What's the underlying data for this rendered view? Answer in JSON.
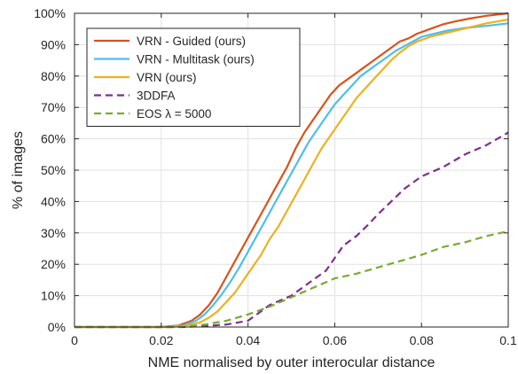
{
  "chart_data": {
    "type": "line",
    "title": "",
    "xlabel": "NME normalised by outer interocular distance",
    "ylabel": "% of images",
    "xlim": [
      0,
      0.1
    ],
    "ylim": [
      0,
      100
    ],
    "xticks": [
      0,
      0.02,
      0.04,
      0.06,
      0.08,
      0.1
    ],
    "xtick_labels": [
      "0",
      "0.02",
      "0.04",
      "0.06",
      "0.08",
      "0.1"
    ],
    "yticks": [
      0,
      10,
      20,
      30,
      40,
      50,
      60,
      70,
      80,
      90,
      100
    ],
    "ytick_labels": [
      "0%",
      "10%",
      "20%",
      "30%",
      "40%",
      "50%",
      "60%",
      "70%",
      "80%",
      "90%",
      "100%"
    ],
    "grid": true,
    "legend_position": "top-left",
    "series": [
      {
        "name": "VRN - Guided (ours)",
        "color": "#d95319",
        "style": "solid",
        "x": [
          0,
          0.02,
          0.024,
          0.027,
          0.029,
          0.031,
          0.033,
          0.035,
          0.037,
          0.039,
          0.041,
          0.043,
          0.045,
          0.047,
          0.049,
          0.051,
          0.053,
          0.055,
          0.057,
          0.059,
          0.061,
          0.063,
          0.065,
          0.067,
          0.069,
          0.071,
          0.073,
          0.075,
          0.077,
          0.079,
          0.082,
          0.085,
          0.088,
          0.091,
          0.095,
          0.1
        ],
        "y": [
          0,
          0,
          0.5,
          2,
          4,
          7,
          11,
          16,
          21,
          26,
          31,
          36,
          41,
          46,
          51,
          57,
          62,
          66,
          70,
          74,
          77,
          79,
          81,
          83,
          85,
          87,
          89,
          91,
          92,
          93.5,
          95,
          96.5,
          97.5,
          98.3,
          99.2,
          100
        ]
      },
      {
        "name": "VRN - Multitask (ours)",
        "color": "#4dbeee",
        "style": "solid",
        "x": [
          0,
          0.021,
          0.025,
          0.028,
          0.03,
          0.032,
          0.034,
          0.036,
          0.038,
          0.04,
          0.042,
          0.044,
          0.046,
          0.048,
          0.05,
          0.052,
          0.054,
          0.056,
          0.058,
          0.06,
          0.062,
          0.064,
          0.066,
          0.068,
          0.07,
          0.072,
          0.074,
          0.076,
          0.078,
          0.08,
          0.083,
          0.086,
          0.09,
          0.095,
          0.1
        ],
        "y": [
          0,
          0,
          0.5,
          2,
          4,
          7,
          10.5,
          14.5,
          19,
          24,
          29,
          34,
          39,
          44,
          49,
          54,
          59,
          63,
          67,
          71,
          74,
          77,
          80,
          82,
          84,
          86,
          88,
          89.5,
          91,
          92.5,
          93.5,
          94.5,
          95.3,
          96,
          96.8
        ]
      },
      {
        "name": "VRN (ours)",
        "color": "#edb120",
        "style": "solid",
        "x": [
          0,
          0.022,
          0.026,
          0.029,
          0.031,
          0.033,
          0.035,
          0.037,
          0.039,
          0.041,
          0.043,
          0.045,
          0.047,
          0.049,
          0.051,
          0.053,
          0.055,
          0.057,
          0.059,
          0.061,
          0.063,
          0.065,
          0.067,
          0.069,
          0.071,
          0.073,
          0.075,
          0.077,
          0.079,
          0.082,
          0.085,
          0.088,
          0.091,
          0.095,
          0.1
        ],
        "y": [
          0,
          0,
          0.5,
          1.5,
          3,
          5,
          8,
          11,
          15,
          19,
          23,
          28,
          32,
          37,
          42,
          47,
          52,
          57,
          61,
          65,
          69,
          73,
          76,
          79,
          82,
          85,
          87.5,
          89.5,
          91,
          92.5,
          93.5,
          94.5,
          95.5,
          96.8,
          98
        ]
      },
      {
        "name": "3DDFA",
        "color": "#7e2f8e",
        "style": "dashed",
        "x": [
          0,
          0.025,
          0.03,
          0.035,
          0.04,
          0.045,
          0.05,
          0.055,
          0.058,
          0.06,
          0.062,
          0.065,
          0.068,
          0.07,
          0.073,
          0.076,
          0.08,
          0.085,
          0.09,
          0.095,
          0.1
        ],
        "y": [
          0,
          0,
          0.3,
          0.8,
          2,
          7,
          10,
          15,
          18,
          22,
          26,
          29,
          33,
          36,
          40,
          44,
          48,
          51,
          55,
          58,
          62
        ]
      },
      {
        "name": "EOS λ = 5000",
        "color": "#77ac30",
        "style": "dashed",
        "x": [
          0,
          0.024,
          0.03,
          0.035,
          0.04,
          0.045,
          0.05,
          0.055,
          0.06,
          0.065,
          0.07,
          0.075,
          0.08,
          0.085,
          0.09,
          0.095,
          0.1
        ],
        "y": [
          0,
          0,
          0.8,
          2,
          4,
          6.5,
          9.5,
          12.5,
          15.5,
          17,
          19,
          21,
          23,
          25.5,
          27,
          29,
          30.5
        ]
      }
    ]
  }
}
